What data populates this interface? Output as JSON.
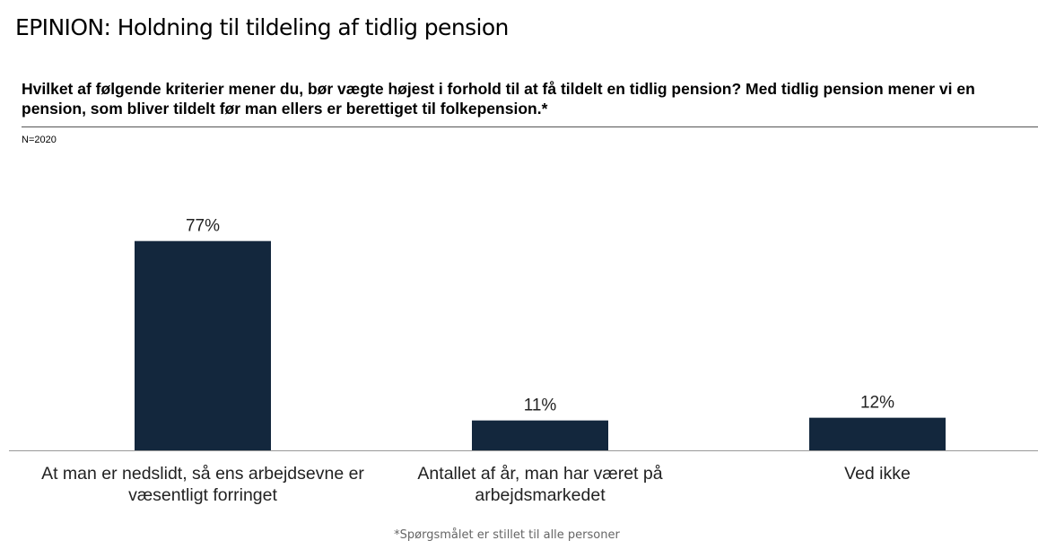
{
  "chart_data": {
    "type": "bar",
    "brand": "EPINION:",
    "title": "Holdning til tildeling af tidlig pension",
    "subtitle": "Hvilket af følgende kriterier mener du, bør vægte højest i forhold til at få tildelt en tidlig pension? Med tidlig pension mener vi en pension, som bliver tildelt før man ellers er berettiget til folkepension.*",
    "sample_note": "N=2020",
    "footnote": "*Spørgsmålet er stillet til alle personer",
    "categories": [
      "At man er nedslidt, så ens arbejdsevne er væsentligt forringet",
      "Antallet af år, man har været på arbejdsmarkedet",
      "Ved ikke"
    ],
    "values": [
      77,
      11,
      12
    ],
    "value_labels": [
      "77%",
      "11%",
      "12%"
    ],
    "color": "#13273d"
  }
}
